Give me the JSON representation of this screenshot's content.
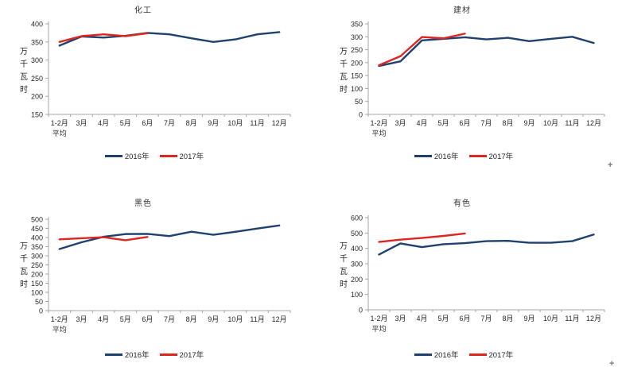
{
  "y_axis_label": "万千瓦时",
  "plus_handle_glyph": "+",
  "colors": {
    "series_2016": "#1E4170",
    "series_2017": "#DE2620",
    "axis": "#A6A6A6",
    "text": "#262626",
    "title": "#333333",
    "background": "#FFFFFF"
  },
  "chart_data": [
    {
      "type": "line",
      "title": "化工",
      "xlabel": "",
      "ylabel": "万千瓦时",
      "ylim": [
        150,
        400
      ],
      "ytick_step": 50,
      "grid": false,
      "legend_position": "bottom",
      "categories": [
        "1-2月\n平均",
        "3月",
        "4月",
        "5月",
        "6月",
        "7月",
        "8月",
        "9月",
        "10月",
        "11月",
        "12月"
      ],
      "series": [
        {
          "name": "2016年",
          "color": "#1E4170",
          "values": [
            340,
            365,
            362,
            367,
            375,
            371,
            360,
            350,
            357,
            371,
            377
          ]
        },
        {
          "name": "2017年",
          "color": "#DE2620",
          "values": [
            350,
            366,
            371,
            366,
            374
          ]
        }
      ]
    },
    {
      "type": "line",
      "title": "建材",
      "xlabel": "",
      "ylabel": "万千瓦时",
      "ylim": [
        0,
        350
      ],
      "ytick_step": 50,
      "grid": false,
      "legend_position": "bottom",
      "categories": [
        "1-2月\n平均",
        "3月",
        "4月",
        "5月",
        "6月",
        "7月",
        "8月",
        "9月",
        "10月",
        "11月",
        "12月"
      ],
      "series": [
        {
          "name": "2016年",
          "color": "#1E4170",
          "values": [
            187,
            205,
            286,
            292,
            298,
            290,
            296,
            283,
            292,
            300,
            276
          ]
        },
        {
          "name": "2017年",
          "color": "#DE2620",
          "values": [
            190,
            225,
            299,
            294,
            312
          ]
        }
      ]
    },
    {
      "type": "line",
      "title": "黑色",
      "xlabel": "",
      "ylabel": "万千瓦时",
      "ylim": [
        0,
        500
      ],
      "ytick_step": 50,
      "grid": false,
      "legend_position": "bottom",
      "categories": [
        "1-2月\n平均",
        "3月",
        "4月",
        "5月",
        "6月",
        "7月",
        "8月",
        "9月",
        "10月",
        "11月",
        "12月"
      ],
      "series": [
        {
          "name": "2016年",
          "color": "#1E4170",
          "values": [
            337,
            374,
            404,
            419,
            420,
            408,
            432,
            415,
            431,
            449,
            466
          ]
        },
        {
          "name": "2017年",
          "color": "#DE2620",
          "values": [
            390,
            396,
            402,
            385,
            403
          ]
        }
      ]
    },
    {
      "type": "line",
      "title": "有色",
      "xlabel": "",
      "ylabel": "万千瓦时",
      "ylim": [
        0,
        600
      ],
      "ytick_step": 100,
      "grid": false,
      "legend_position": "bottom",
      "categories": [
        "1-2月\n平均",
        "3月",
        "4月",
        "5月",
        "6月",
        "7月",
        "8月",
        "9月",
        "10月",
        "11月",
        "12月"
      ],
      "series": [
        {
          "name": "2016年",
          "color": "#1E4170",
          "values": [
            360,
            432,
            408,
            427,
            434,
            447,
            449,
            437,
            437,
            447,
            490
          ]
        },
        {
          "name": "2017年",
          "color": "#DE2620",
          "values": [
            442,
            457,
            468,
            481,
            497
          ]
        }
      ]
    }
  ]
}
